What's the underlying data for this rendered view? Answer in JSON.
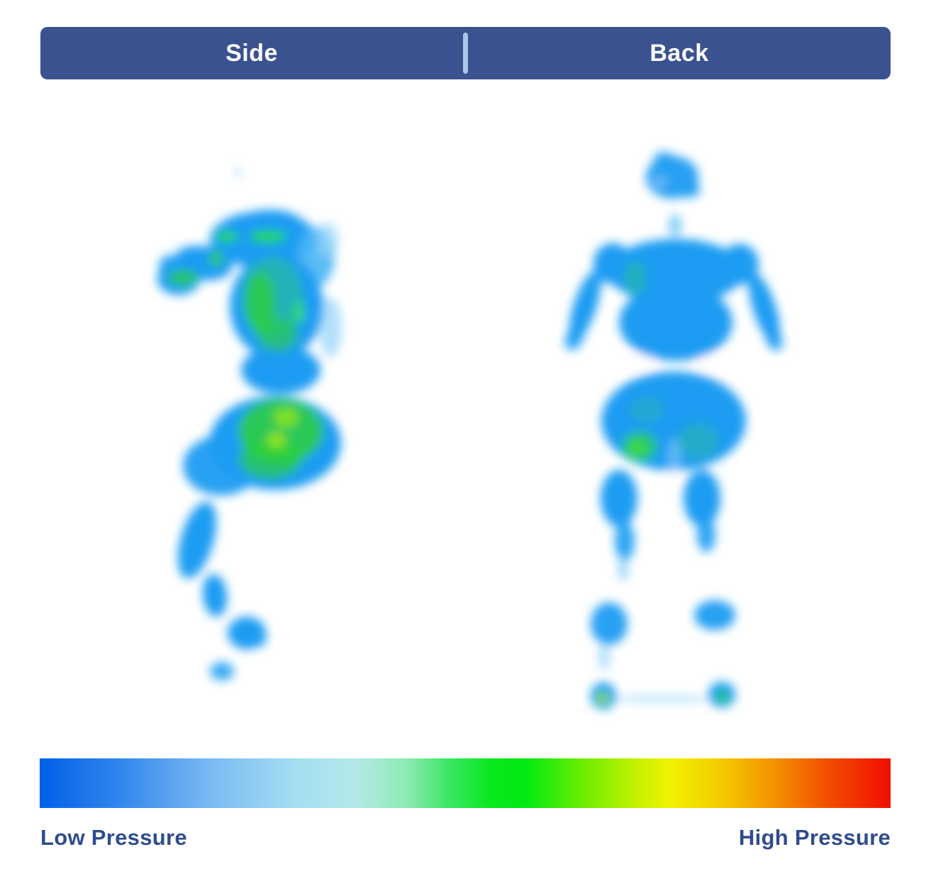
{
  "meta": {
    "background": "#FFFFFF"
  },
  "tabs": {
    "bar_color": "#3A528F",
    "divider_color": "#A9C7E2",
    "text_color": "#FFFFFF",
    "items": [
      {
        "label": "Side"
      },
      {
        "label": "Back"
      }
    ]
  },
  "legend": {
    "low_label": "Low Pressure",
    "high_label": "High Pressure",
    "text_color": "#2F4D8E"
  },
  "scale": {
    "stops": [
      {
        "color": "#0061E8",
        "pos": 0
      },
      {
        "color": "#2F84EC",
        "pos": 9
      },
      {
        "color": "#79BAF2",
        "pos": 20
      },
      {
        "color": "#A5DDF3",
        "pos": 30
      },
      {
        "color": "#B4E9E9",
        "pos": 37
      },
      {
        "color": "#8FEAB4",
        "pos": 43
      },
      {
        "color": "#3BE766",
        "pos": 48
      },
      {
        "color": "#0AE81F",
        "pos": 53
      },
      {
        "color": "#00E913",
        "pos": 57
      },
      {
        "color": "#6FED00",
        "pos": 64
      },
      {
        "color": "#C3F100",
        "pos": 70
      },
      {
        "color": "#F0F200",
        "pos": 74
      },
      {
        "color": "#F4CC00",
        "pos": 80
      },
      {
        "color": "#F49400",
        "pos": 86
      },
      {
        "color": "#F24A00",
        "pos": 93
      },
      {
        "color": "#F20D00",
        "pos": 100
      }
    ]
  },
  "chart_data": {
    "type": "heatmap",
    "title": "",
    "panels": [
      {
        "label": "Side",
        "subject": "side-sleeper full-body mattress pressure map",
        "regions": [
          {
            "body_part": "head",
            "pressure": "none (tiny trace dot)"
          },
          {
            "body_part": "shoulder",
            "pressure": "medium (green streaks on blue)"
          },
          {
            "body_part": "arm (extended left)",
            "pressure": "low-medium"
          },
          {
            "body_part": "torso",
            "pressure": "medium (teal-green column)"
          },
          {
            "body_part": "hips",
            "pressure": "medium-high (bright green core)"
          },
          {
            "body_part": "thigh and knee",
            "pressure": "low (blue)"
          },
          {
            "body_part": "foot",
            "pressure": "low (blue)"
          }
        ]
      },
      {
        "label": "Back",
        "subject": "back-sleeper full-body mattress pressure map",
        "regions": [
          {
            "body_part": "head",
            "pressure": "low (blue)"
          },
          {
            "body_part": "shoulders and arms",
            "pressure": "low (blue, faint green patch left shoulder)"
          },
          {
            "body_part": "torso",
            "pressure": "low (blue)"
          },
          {
            "body_part": "buttocks",
            "pressure": "low-medium (green spot left, teal right)"
          },
          {
            "body_part": "thighs",
            "pressure": "low (blue)"
          },
          {
            "body_part": "calves",
            "pressure": "low (blue)"
          },
          {
            "body_part": "heels",
            "pressure": "medium spots (small green/yellow cores)"
          }
        ]
      }
    ],
    "colorbar": {
      "orientation": "horizontal",
      "min_label": "Low Pressure",
      "max_label": "High Pressure",
      "colors_low_to_high": [
        "blue",
        "light blue",
        "pale cyan",
        "green",
        "yellow-green",
        "yellow",
        "orange",
        "red"
      ]
    }
  },
  "heatmaps": {
    "blur": 7,
    "side": {
      "blobs": [
        [
          336,
          243,
          5,
          5,
          "#9BD7F8",
          0.9,
          0
        ],
        [
          372,
          338,
          76,
          40,
          "#1B9CF2",
          1,
          0
        ],
        [
          381,
          314,
          44,
          18,
          "#1B9CF2",
          1,
          0
        ],
        [
          446,
          362,
          26,
          42,
          "#49B6F5",
          0.9,
          0
        ],
        [
          462,
          338,
          16,
          24,
          "#9BD7F8",
          0.65,
          0
        ],
        [
          286,
          371,
          42,
          24,
          "#1B9CF2",
          1,
          8
        ],
        [
          252,
          394,
          30,
          22,
          "#1B9CF2",
          1,
          0
        ],
        [
          237,
          380,
          13,
          20,
          "#1B9CF2",
          0.95,
          0
        ],
        [
          390,
          432,
          66,
          74,
          "#1B9CF2",
          1,
          0
        ],
        [
          466,
          462,
          16,
          42,
          "#7FCBF7",
          0.6,
          0
        ],
        [
          396,
          522,
          56,
          34,
          "#1B9CF2",
          1,
          0
        ],
        [
          384,
          420,
          44,
          58,
          "#2BC87E",
          0.5,
          0
        ],
        [
          367,
          427,
          21,
          44,
          "#2ED32E",
          0.7,
          0
        ],
        [
          391,
          472,
          29,
          24,
          "#2ED32E",
          0.55,
          0
        ],
        [
          320,
          334,
          16,
          7,
          "#22DD11",
          0.95,
          0
        ],
        [
          378,
          334,
          26,
          8,
          "#22DD11",
          0.95,
          0
        ],
        [
          305,
          365,
          9,
          11,
          "#2ED32E",
          0.85,
          0
        ],
        [
          258,
          392,
          22,
          11,
          "#2ED32E",
          0.75,
          0
        ],
        [
          422,
          441,
          6,
          16,
          "#35E80E",
          0.95,
          0
        ],
        [
          388,
          625,
          93,
          66,
          "#1B9CF2",
          1,
          0
        ],
        [
          312,
          657,
          54,
          42,
          "#1B9CF2",
          0.95,
          0
        ],
        [
          396,
          608,
          60,
          46,
          "#2ED32E",
          0.8,
          0
        ],
        [
          381,
          648,
          44,
          28,
          "#2ED32E",
          0.65,
          0
        ],
        [
          403,
          589,
          17,
          13,
          "#90E614",
          0.85,
          0
        ],
        [
          390,
          621,
          13,
          11,
          "#AAE911",
          0.8,
          0
        ],
        [
          278,
          762,
          23,
          56,
          "#1B9CF2",
          1,
          16
        ],
        [
          303,
          840,
          17,
          30,
          "#1B9CF2",
          1,
          -6
        ],
        [
          348,
          893,
          27,
          23,
          "#1B9CF2",
          1,
          0
        ],
        [
          360,
          902,
          16,
          11,
          "#1B9CF2",
          0.9,
          0
        ],
        [
          313,
          947,
          17,
          13,
          "#1B9CF2",
          0.85,
          0
        ]
      ]
    },
    "back": {
      "blobs": [
        [
          948,
          250,
          37,
          30,
          "#1B9CF2",
          0.95,
          0
        ],
        [
          936,
          224,
          14,
          10,
          "#1B9CF2",
          0.8,
          0
        ],
        [
          973,
          268,
          15,
          11,
          "#1B9CF2",
          0.85,
          0
        ],
        [
          930,
          257,
          9,
          7,
          "#FFFFFF",
          0.35,
          0
        ],
        [
          952,
          318,
          9,
          16,
          "#5BBDF6",
          0.75,
          0
        ],
        [
          953,
          383,
          96,
          46,
          "#1B9CF2",
          1,
          0
        ],
        [
          864,
          372,
          27,
          29,
          "#1B9CF2",
          1,
          0
        ],
        [
          1043,
          373,
          27,
          29,
          "#1B9CF2",
          1,
          0
        ],
        [
          953,
          455,
          80,
          54,
          "#1B9CF2",
          1,
          0
        ],
        [
          825,
          432,
          16,
          52,
          "#1B9CF2",
          1,
          18
        ],
        [
          810,
          477,
          12,
          18,
          "#1B9CF2",
          0.9,
          25
        ],
        [
          1078,
          435,
          16,
          52,
          "#1B9CF2",
          1,
          -18
        ],
        [
          1092,
          480,
          11,
          16,
          "#1B9CF2",
          0.85,
          -25
        ],
        [
          896,
          392,
          16,
          24,
          "#2EC87E",
          0.45,
          0
        ],
        [
          882,
          511,
          42,
          11,
          "#FFFFFF",
          0.7,
          0
        ],
        [
          1026,
          511,
          42,
          11,
          "#FFFFFF",
          0.7,
          0
        ],
        [
          950,
          594,
          102,
          70,
          "#1B9CF2",
          1,
          0
        ],
        [
          912,
          578,
          24,
          19,
          "#28BCA0",
          0.4,
          0
        ],
        [
          985,
          622,
          29,
          25,
          "#28BCA0",
          0.5,
          0
        ],
        [
          902,
          630,
          25,
          21,
          "#2ED34E",
          0.75,
          0
        ],
        [
          899,
          632,
          12,
          10,
          "#3FE02A",
          0.85,
          0
        ],
        [
          951,
          650,
          9,
          32,
          "#FFFFFF",
          0.3,
          0
        ],
        [
          873,
          703,
          26,
          40,
          "#1B9CF2",
          1,
          0
        ],
        [
          990,
          703,
          26,
          40,
          "#1B9CF2",
          1,
          0
        ],
        [
          881,
          763,
          14,
          28,
          "#1B9CF2",
          0.9,
          0
        ],
        [
          996,
          755,
          13,
          24,
          "#1B9CF2",
          0.9,
          0
        ],
        [
          879,
          802,
          7,
          18,
          "#5BBDF6",
          0.6,
          0
        ],
        [
          859,
          880,
          26,
          30,
          "#1B9CF2",
          0.95,
          0
        ],
        [
          852,
          926,
          8,
          20,
          "#7FCBF7",
          0.6,
          0
        ],
        [
          1008,
          868,
          29,
          21,
          "#1B9CF2",
          0.95,
          0
        ],
        [
          851,
          982,
          18,
          19,
          "#1B9CF2",
          1,
          0
        ],
        [
          850,
          985,
          9,
          10,
          "#2ED32E",
          0.95,
          0
        ],
        [
          850,
          985,
          5,
          5,
          "#CCF000",
          0.95,
          0
        ],
        [
          1018,
          980,
          19,
          18,
          "#1B9CF2",
          1,
          0
        ],
        [
          1019,
          983,
          8,
          9,
          "#2ED32E",
          0.9,
          0
        ],
        [
          935,
          986,
          72,
          7,
          "#9BD7F8",
          0.5,
          0
        ]
      ]
    }
  }
}
